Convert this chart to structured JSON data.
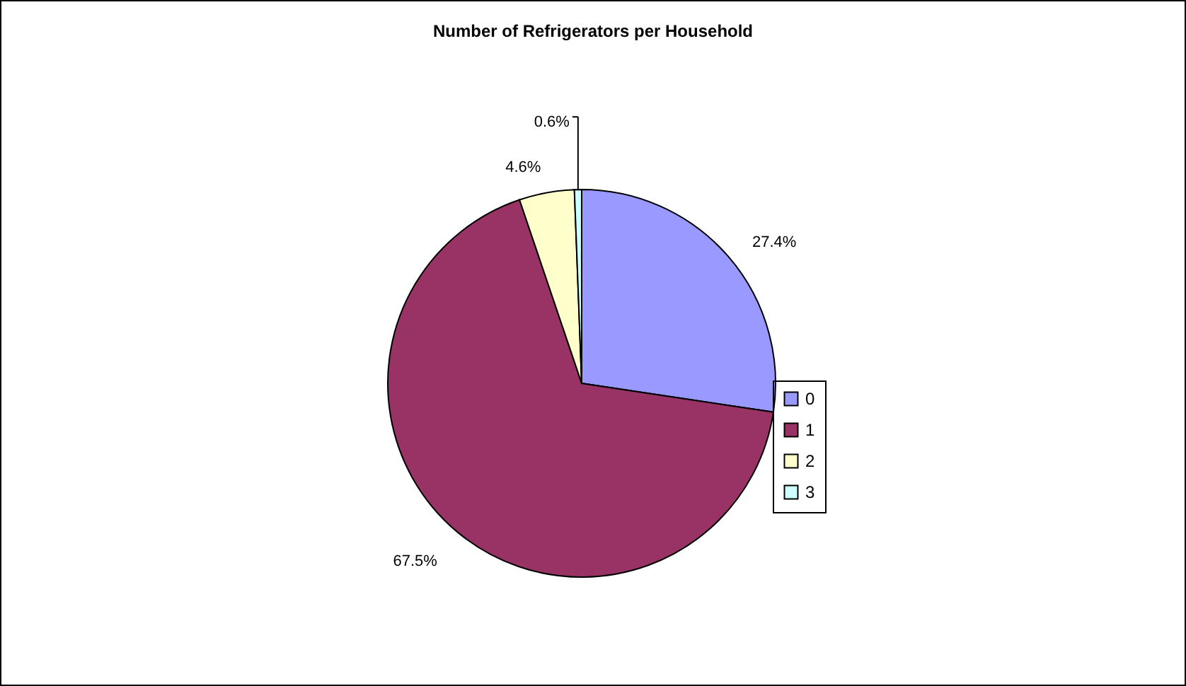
{
  "chart_data": {
    "type": "pie",
    "title": "Number of Refrigerators per Household",
    "categories": [
      "0",
      "1",
      "2",
      "3"
    ],
    "values": [
      27.4,
      67.5,
      4.6,
      0.6
    ],
    "colors": [
      "#9999ff",
      "#993366",
      "#ffffcc",
      "#ccffff"
    ],
    "value_labels": [
      "27.4%",
      "67.5%",
      "4.6%",
      "0.6%"
    ],
    "legend": "bottom right"
  }
}
